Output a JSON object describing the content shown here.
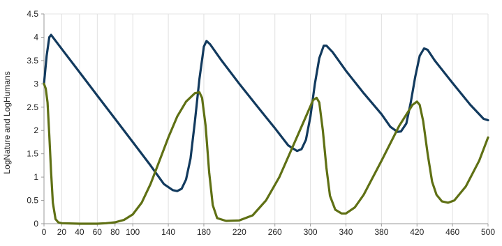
{
  "chart_data": {
    "type": "line",
    "title": "",
    "xlabel": "",
    "ylabel": "LogNature and LogHumans",
    "xlim": [
      0,
      500
    ],
    "ylim": [
      0,
      4.5
    ],
    "x_ticks": [
      0,
      20,
      40,
      60,
      80,
      100,
      140,
      180,
      220,
      260,
      300,
      340,
      380,
      420,
      460,
      500
    ],
    "x_tick_labels": [
      "0",
      "20",
      "40",
      "60",
      "80",
      "100",
      "140",
      "180",
      "220",
      "260",
      "300",
      "340",
      "380",
      "420",
      "460",
      "500"
    ],
    "y_ticks": [
      0,
      0.5,
      1,
      1.5,
      2,
      2.5,
      3,
      3.5,
      4,
      4.5
    ],
    "y_tick_labels": [
      "0",
      "0.5",
      "1",
      "1.5",
      "2",
      "2.5",
      "3",
      "3.5",
      "4",
      "4.5"
    ],
    "grid": {
      "vertical": true,
      "horizontal": false
    },
    "legend": "none",
    "series": [
      {
        "color": "#123a5e",
        "points": [
          [
            0,
            3.0
          ],
          [
            3,
            3.6
          ],
          [
            6,
            4.0
          ],
          [
            8,
            4.05
          ],
          [
            12,
            3.95
          ],
          [
            20,
            3.75
          ],
          [
            40,
            3.25
          ],
          [
            60,
            2.75
          ],
          [
            80,
            2.25
          ],
          [
            100,
            1.75
          ],
          [
            120,
            1.25
          ],
          [
            135,
            0.85
          ],
          [
            145,
            0.72
          ],
          [
            150,
            0.7
          ],
          [
            155,
            0.75
          ],
          [
            160,
            0.95
          ],
          [
            165,
            1.4
          ],
          [
            170,
            2.2
          ],
          [
            175,
            3.1
          ],
          [
            180,
            3.8
          ],
          [
            183,
            3.92
          ],
          [
            187,
            3.85
          ],
          [
            200,
            3.5
          ],
          [
            220,
            3.0
          ],
          [
            240,
            2.52
          ],
          [
            260,
            2.05
          ],
          [
            275,
            1.68
          ],
          [
            285,
            1.56
          ],
          [
            290,
            1.6
          ],
          [
            295,
            1.8
          ],
          [
            300,
            2.3
          ],
          [
            305,
            3.0
          ],
          [
            310,
            3.55
          ],
          [
            315,
            3.82
          ],
          [
            318,
            3.82
          ],
          [
            325,
            3.68
          ],
          [
            340,
            3.28
          ],
          [
            360,
            2.8
          ],
          [
            380,
            2.35
          ],
          [
            390,
            2.08
          ],
          [
            398,
            1.97
          ],
          [
            402,
            1.98
          ],
          [
            408,
            2.15
          ],
          [
            413,
            2.6
          ],
          [
            418,
            3.15
          ],
          [
            423,
            3.6
          ],
          [
            428,
            3.76
          ],
          [
            432,
            3.73
          ],
          [
            440,
            3.5
          ],
          [
            460,
            3.02
          ],
          [
            480,
            2.55
          ],
          [
            495,
            2.25
          ],
          [
            500,
            2.22
          ]
        ]
      },
      {
        "color": "#5f7014",
        "points": [
          [
            0,
            3.0
          ],
          [
            2,
            2.9
          ],
          [
            4,
            2.6
          ],
          [
            6,
            1.9
          ],
          [
            8,
            1.1
          ],
          [
            10,
            0.45
          ],
          [
            13,
            0.1
          ],
          [
            16,
            0.03
          ],
          [
            20,
            0.01
          ],
          [
            40,
            0.0
          ],
          [
            60,
            0.0
          ],
          [
            70,
            0.01
          ],
          [
            80,
            0.03
          ],
          [
            90,
            0.08
          ],
          [
            100,
            0.2
          ],
          [
            110,
            0.45
          ],
          [
            120,
            0.85
          ],
          [
            130,
            1.35
          ],
          [
            140,
            1.85
          ],
          [
            150,
            2.3
          ],
          [
            160,
            2.62
          ],
          [
            170,
            2.8
          ],
          [
            175,
            2.82
          ],
          [
            178,
            2.7
          ],
          [
            182,
            2.1
          ],
          [
            186,
            1.1
          ],
          [
            190,
            0.4
          ],
          [
            195,
            0.12
          ],
          [
            205,
            0.06
          ],
          [
            220,
            0.07
          ],
          [
            235,
            0.18
          ],
          [
            250,
            0.5
          ],
          [
            265,
            1.0
          ],
          [
            280,
            1.65
          ],
          [
            295,
            2.3
          ],
          [
            303,
            2.65
          ],
          [
            307,
            2.7
          ],
          [
            310,
            2.6
          ],
          [
            314,
            2.0
          ],
          [
            318,
            1.2
          ],
          [
            322,
            0.6
          ],
          [
            328,
            0.3
          ],
          [
            335,
            0.22
          ],
          [
            340,
            0.22
          ],
          [
            350,
            0.35
          ],
          [
            360,
            0.62
          ],
          [
            380,
            1.35
          ],
          [
            400,
            2.1
          ],
          [
            415,
            2.55
          ],
          [
            420,
            2.62
          ],
          [
            423,
            2.55
          ],
          [
            427,
            2.2
          ],
          [
            432,
            1.5
          ],
          [
            437,
            0.9
          ],
          [
            442,
            0.62
          ],
          [
            448,
            0.48
          ],
          [
            455,
            0.45
          ],
          [
            462,
            0.5
          ],
          [
            475,
            0.8
          ],
          [
            490,
            1.35
          ],
          [
            500,
            1.85
          ]
        ]
      }
    ]
  }
}
